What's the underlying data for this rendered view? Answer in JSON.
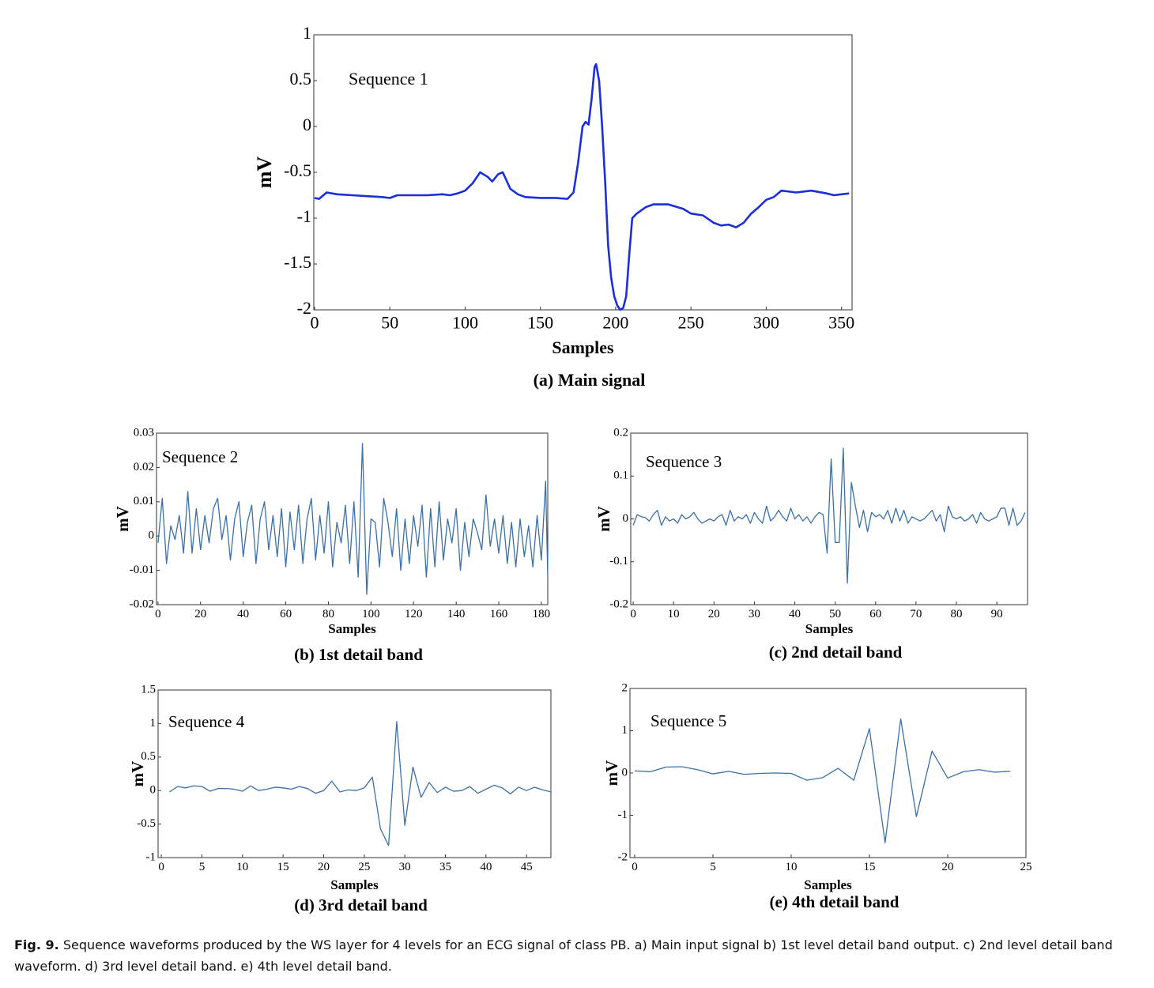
{
  "chart_data": [
    {
      "type": "line",
      "title": "(a) Main signal",
      "annotation": "Sequence 1",
      "xlabel": "Samples",
      "ylabel": "mV",
      "color": "#1a2fd8",
      "x": [
        0,
        3,
        8,
        15,
        25,
        35,
        45,
        50,
        55,
        65,
        75,
        85,
        90,
        95,
        100,
        105,
        110,
        115,
        118,
        122,
        125,
        130,
        135,
        140,
        150,
        160,
        168,
        172,
        175,
        178,
        180,
        182,
        184,
        186,
        187,
        189,
        191,
        193,
        195,
        197,
        199,
        201,
        203,
        205,
        207,
        209,
        211,
        214,
        220,
        225,
        235,
        245,
        250,
        258,
        265,
        270,
        275,
        280,
        285,
        290,
        295,
        300,
        305,
        310,
        320,
        330,
        340,
        345,
        350,
        355
      ],
      "values": [
        -0.78,
        -0.79,
        -0.72,
        -0.74,
        -0.75,
        -0.76,
        -0.77,
        -0.78,
        -0.75,
        -0.75,
        -0.75,
        -0.74,
        -0.75,
        -0.73,
        -0.7,
        -0.62,
        -0.5,
        -0.55,
        -0.6,
        -0.52,
        -0.5,
        -0.68,
        -0.74,
        -0.77,
        -0.78,
        -0.78,
        -0.79,
        -0.72,
        -0.4,
        0.0,
        0.05,
        0.02,
        0.3,
        0.65,
        0.68,
        0.5,
        0.0,
        -0.6,
        -1.3,
        -1.65,
        -1.85,
        -1.95,
        -2.0,
        -1.98,
        -1.85,
        -1.4,
        -1.0,
        -0.95,
        -0.88,
        -0.85,
        -0.85,
        -0.9,
        -0.95,
        -0.97,
        -1.05,
        -1.08,
        -1.07,
        -1.1,
        -1.05,
        -0.95,
        -0.88,
        -0.8,
        -0.77,
        -0.7,
        -0.72,
        -0.7,
        -0.73,
        -0.75,
        -0.74,
        -0.73
      ],
      "xlim": [
        -0.5,
        357
      ],
      "ylim": [
        -2,
        1
      ],
      "xticks": [
        0,
        50,
        100,
        150,
        200,
        250,
        300,
        350
      ],
      "yticks": [
        -2,
        -1.5,
        -1,
        -0.5,
        0,
        0.5,
        1
      ]
    },
    {
      "type": "line",
      "title": "(b) 1st detail band",
      "annotation": "Sequence 2",
      "xlabel": "Samples",
      "ylabel": "mV",
      "color": "#3b6fa8",
      "x": [
        0,
        2,
        4,
        6,
        8,
        10,
        12,
        14,
        16,
        18,
        20,
        22,
        24,
        26,
        28,
        30,
        32,
        34,
        36,
        38,
        40,
        42,
        44,
        46,
        48,
        50,
        52,
        54,
        56,
        58,
        60,
        62,
        64,
        66,
        68,
        70,
        72,
        74,
        76,
        78,
        80,
        82,
        84,
        86,
        88,
        90,
        92,
        94,
        96,
        98,
        100,
        102,
        104,
        106,
        108,
        110,
        112,
        114,
        116,
        118,
        120,
        122,
        124,
        126,
        128,
        130,
        132,
        134,
        136,
        138,
        140,
        142,
        144,
        146,
        148,
        150,
        152,
        154,
        156,
        158,
        160,
        162,
        164,
        166,
        168,
        170,
        172,
        174,
        176,
        178,
        180,
        182,
        183
      ],
      "values": [
        -0.002,
        0.011,
        -0.008,
        0.003,
        -0.001,
        0.006,
        -0.005,
        0.013,
        -0.005,
        0.008,
        -0.004,
        0.006,
        -0.002,
        0.008,
        0.011,
        -0.001,
        0.006,
        -0.007,
        0.005,
        0.01,
        -0.006,
        0.004,
        0.009,
        -0.008,
        0.005,
        0.01,
        -0.004,
        0.006,
        -0.006,
        0.008,
        -0.009,
        0.007,
        -0.004,
        0.009,
        -0.008,
        0.005,
        0.011,
        -0.007,
        0.006,
        -0.005,
        0.01,
        -0.009,
        0.004,
        -0.002,
        0.009,
        -0.008,
        0.01,
        -0.012,
        0.027,
        -0.017,
        0.005,
        0.004,
        -0.009,
        0.011,
        0.004,
        -0.006,
        0.008,
        -0.01,
        0.005,
        -0.008,
        0.006,
        -0.003,
        0.009,
        -0.012,
        0.008,
        -0.009,
        0.01,
        -0.007,
        0.005,
        -0.002,
        0.008,
        -0.01,
        0.004,
        -0.006,
        0.005,
        0.001,
        -0.004,
        0.012,
        -0.003,
        0.005,
        -0.005,
        0.006,
        -0.008,
        0.004,
        -0.009,
        0.005,
        -0.006,
        0.003,
        -0.009,
        0.006,
        -0.007,
        0.016,
        -0.012
      ],
      "xlim": [
        -0.7,
        183
      ],
      "ylim": [
        -0.02,
        0.03
      ],
      "xticks": [
        0,
        20,
        40,
        60,
        80,
        100,
        120,
        140,
        160,
        180
      ],
      "yticks": [
        -0.02,
        -0.01,
        0,
        0.01,
        0.02,
        0.03
      ]
    },
    {
      "type": "line",
      "title": "(c) 2nd detail band",
      "annotation": "Sequence 3",
      "xlabel": "Samples",
      "ylabel": "mV",
      "color": "#3b6fa8",
      "x": [
        0,
        1,
        2,
        3,
        4,
        5,
        6,
        7,
        8,
        9,
        10,
        11,
        12,
        13,
        14,
        15,
        16,
        17,
        18,
        19,
        20,
        21,
        22,
        23,
        24,
        25,
        26,
        27,
        28,
        29,
        30,
        31,
        32,
        33,
        34,
        35,
        36,
        37,
        38,
        39,
        40,
        41,
        42,
        43,
        44,
        45,
        46,
        47,
        48,
        49,
        50,
        51,
        52,
        53,
        54,
        55,
        56,
        57,
        58,
        59,
        60,
        61,
        62,
        63,
        64,
        65,
        66,
        67,
        68,
        69,
        70,
        71,
        72,
        73,
        74,
        75,
        76,
        77,
        78,
        79,
        80,
        81,
        82,
        83,
        84,
        85,
        86,
        87,
        88,
        89,
        90,
        91,
        92,
        93,
        94,
        95,
        96,
        97
      ],
      "values": [
        -0.015,
        0.01,
        0.005,
        0.003,
        -0.005,
        0.01,
        0.02,
        -0.015,
        0.005,
        -0.005,
        0.0,
        -0.01,
        0.01,
        0.0,
        0.005,
        0.015,
        0.0,
        -0.01,
        -0.005,
        0.0,
        -0.005,
        0.005,
        0.01,
        -0.015,
        0.02,
        -0.005,
        0.005,
        0.0,
        0.01,
        -0.01,
        0.015,
        0.0,
        -0.01,
        0.03,
        -0.005,
        0.005,
        0.02,
        0.005,
        -0.005,
        0.025,
        0.0,
        0.01,
        -0.005,
        0.005,
        -0.01,
        0.005,
        0.015,
        0.01,
        -0.08,
        0.14,
        -0.055,
        -0.055,
        0.165,
        -0.15,
        0.085,
        0.03,
        -0.02,
        0.02,
        -0.03,
        0.015,
        0.005,
        0.01,
        0.0,
        0.02,
        -0.01,
        0.025,
        -0.005,
        0.02,
        -0.01,
        0.005,
        0.0,
        -0.005,
        0.0,
        0.01,
        0.02,
        -0.005,
        0.01,
        -0.03,
        0.03,
        0.005,
        0.0,
        0.005,
        -0.005,
        0.0,
        0.01,
        -0.01,
        0.015,
        0.0,
        -0.005,
        0.0,
        0.005,
        0.025,
        0.025,
        -0.015,
        0.025,
        -0.015,
        -0.005,
        0.015
      ],
      "xlim": [
        -0.6,
        97.6
      ],
      "ylim": [
        -0.2,
        0.2
      ],
      "xticks": [
        0,
        10,
        20,
        30,
        40,
        50,
        60,
        70,
        80,
        90
      ],
      "yticks": [
        -0.2,
        -0.1,
        0,
        0.1,
        0.2
      ]
    },
    {
      "type": "line",
      "title": "(d) 3rd detail band",
      "annotation": "Sequence 4",
      "xlabel": "Samples",
      "ylabel": "mV",
      "color": "#3b6fa8",
      "x": [
        1,
        2,
        3,
        4,
        5,
        6,
        7,
        8,
        9,
        10,
        11,
        12,
        13,
        14,
        15,
        16,
        17,
        18,
        19,
        20,
        21,
        22,
        23,
        24,
        25,
        26,
        27,
        28,
        29,
        30,
        31,
        32,
        33,
        34,
        35,
        36,
        37,
        38,
        39,
        40,
        41,
        42,
        43,
        44,
        45,
        46,
        47,
        48
      ],
      "values": [
        -0.02,
        0.06,
        0.04,
        0.07,
        0.06,
        -0.01,
        0.03,
        0.03,
        0.02,
        -0.01,
        0.07,
        0.0,
        0.02,
        0.05,
        0.04,
        0.02,
        0.06,
        0.03,
        -0.04,
        0.0,
        0.14,
        -0.02,
        0.01,
        0.0,
        0.04,
        0.2,
        -0.57,
        -0.82,
        1.03,
        -0.52,
        0.35,
        -0.1,
        0.12,
        -0.03,
        0.05,
        -0.01,
        0.0,
        0.06,
        -0.04,
        0.02,
        0.08,
        0.04,
        -0.05,
        0.05,
        0.0,
        0.05,
        0.01,
        -0.02
      ],
      "xlim": [
        -0.4,
        48
      ],
      "ylim": [
        -1,
        1.5
      ],
      "xticks": [
        0,
        5,
        10,
        15,
        20,
        25,
        30,
        35,
        40,
        45
      ],
      "yticks": [
        -1,
        -0.5,
        0,
        0.5,
        1,
        1.5
      ]
    },
    {
      "type": "line",
      "title": "(e) 4th detail band",
      "annotation": "Sequence 5",
      "xlabel": "Samples",
      "ylabel": "mV",
      "color": "#3b6fa8",
      "x": [
        0,
        1,
        2,
        3,
        4,
        5,
        6,
        7,
        8,
        9,
        10,
        11,
        12,
        13,
        14,
        15,
        16,
        17,
        18,
        19,
        20,
        21,
        22,
        23,
        24
      ],
      "values": [
        0.05,
        0.03,
        0.14,
        0.15,
        0.08,
        -0.02,
        0.04,
        -0.03,
        -0.01,
        0.0,
        -0.01,
        -0.17,
        -0.11,
        0.11,
        -0.17,
        1.05,
        -1.65,
        1.28,
        -1.03,
        0.52,
        -0.12,
        0.03,
        0.08,
        0.02,
        0.04
      ],
      "xlim": [
        -0.3,
        25
      ],
      "ylim": [
        -2,
        2
      ],
      "xticks": [
        0,
        5,
        10,
        15,
        20,
        25
      ],
      "yticks": [
        -2,
        -1,
        0,
        1,
        2
      ]
    }
  ],
  "caption": {
    "label": "Fig. 9.",
    "text": "Sequence waveforms produced by the WS layer for 4 levels for an ECG signal of class PB. a) Main input signal b) 1st level detail band output. c) 2nd level detail band waveform. d) 3rd level detail band. e) 4th level detail band."
  }
}
